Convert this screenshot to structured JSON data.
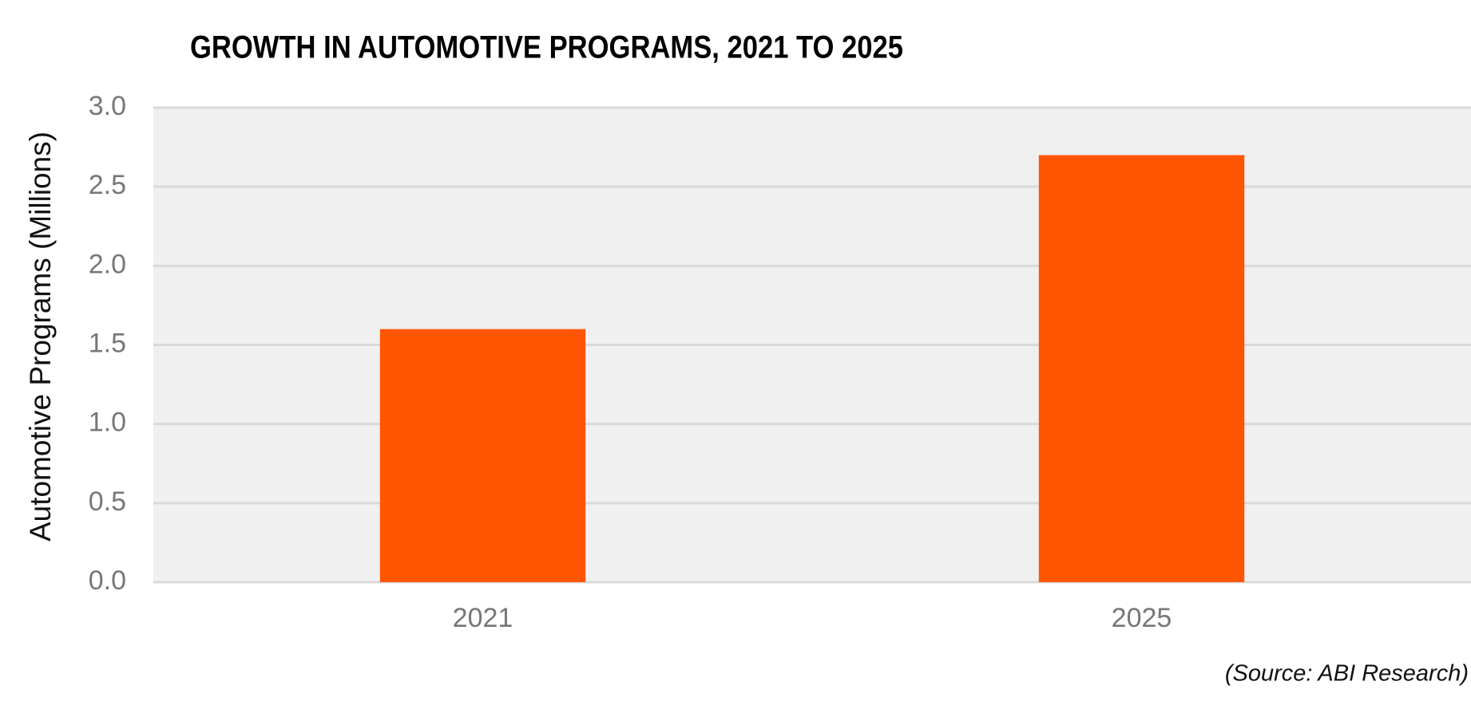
{
  "chart_data": {
    "type": "bar",
    "title": "GROWTH IN AUTOMOTIVE PROGRAMS, 2021 TO 2025",
    "y_label": "Automotive Programs (Millions)",
    "annotation": "(Source: ABI Research)",
    "categories": [
      "2021",
      "2025"
    ],
    "values": [
      1.6,
      2.7
    ],
    "color": "#ff5500",
    "ylim": [
      0,
      3
    ],
    "yticks": [
      {
        "value": 0,
        "label": "0.0"
      },
      0.5,
      {
        "value": 1,
        "label": "1.0"
      },
      1.5,
      {
        "value": 2,
        "label": "2.0"
      },
      2.5,
      {
        "value": 3,
        "label": "3.0"
      }
    ],
    "grid": true
  }
}
